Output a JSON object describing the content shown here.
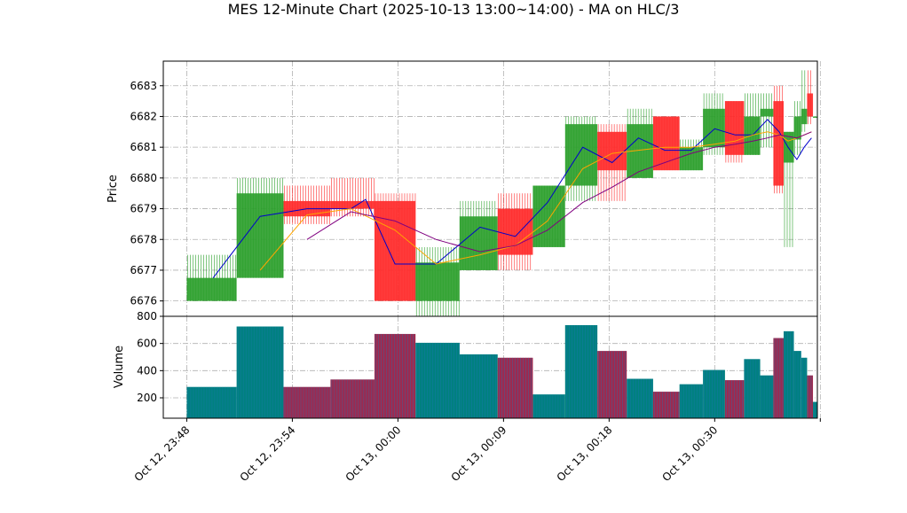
{
  "chart_data": {
    "type": "candlestick",
    "title": "MES 12-Minute Chart (2025-10-13 13:00~14:00) - MA on HLC/3",
    "price_panel": {
      "ylabel": "Price",
      "ylim": [
        6675.5,
        6683.8
      ],
      "yticks": [
        6676,
        6677,
        6678,
        6679,
        6680,
        6681,
        6682,
        6683
      ],
      "grid": true
    },
    "volume_panel": {
      "ylabel": "Volume",
      "ylim": [
        50,
        800
      ],
      "yticks": [
        200,
        400,
        600,
        800
      ],
      "grid": true
    },
    "xlim": [
      -0.8,
      21.5
    ],
    "x_ticks": [
      {
        "pos": 0,
        "label": "Oct 12, 23:48"
      },
      {
        "pos": 3.6,
        "label": "Oct 12, 23:54"
      },
      {
        "pos": 7.2,
        "label": "Oct 13, 00:00"
      },
      {
        "pos": 10.8,
        "label": "Oct 13, 00:09"
      },
      {
        "pos": 14.4,
        "label": "Oct 13, 00:18"
      },
      {
        "pos": 18.0,
        "label": "Oct 13, 00:30"
      },
      {
        "pos": 21.6,
        "label": ""
      }
    ],
    "candles": [
      {
        "x0": 0.0,
        "x1": 1.7,
        "open": 6676.0,
        "high": 6677.5,
        "low": 6676.0,
        "close": 6676.75,
        "volume": 280
      },
      {
        "x0": 1.7,
        "x1": 3.3,
        "open": 6676.75,
        "high": 6680.0,
        "low": 6676.75,
        "close": 6679.5,
        "volume": 725
      },
      {
        "x0": 3.3,
        "x1": 4.9,
        "open": 6679.25,
        "high": 6679.75,
        "low": 6678.5,
        "close": 6678.75,
        "volume": 280
      },
      {
        "x0": 4.9,
        "x1": 6.4,
        "open": 6679.25,
        "high": 6680.0,
        "low": 6678.75,
        "close": 6679.0,
        "volume": 335
      },
      {
        "x0": 6.4,
        "x1": 7.8,
        "open": 6679.25,
        "high": 6679.5,
        "low": 6676.0,
        "close": 6676.0,
        "volume": 670
      },
      {
        "x0": 7.8,
        "x1": 9.3,
        "open": 6676.0,
        "high": 6677.75,
        "low": 6675.5,
        "close": 6677.25,
        "volume": 605
      },
      {
        "x0": 9.3,
        "x1": 10.6,
        "open": 6677.0,
        "high": 6679.25,
        "low": 6677.0,
        "close": 6678.75,
        "volume": 520
      },
      {
        "x0": 10.6,
        "x1": 11.8,
        "open": 6679.0,
        "high": 6679.5,
        "low": 6677.0,
        "close": 6677.5,
        "volume": 495
      },
      {
        "x0": 11.8,
        "x1": 12.9,
        "open": 6677.75,
        "high": 6679.75,
        "low": 6677.75,
        "close": 6679.75,
        "volume": 225
      },
      {
        "x0": 12.9,
        "x1": 14.0,
        "open": 6679.75,
        "high": 6682.0,
        "low": 6679.25,
        "close": 6681.75,
        "volume": 735
      },
      {
        "x0": 14.0,
        "x1": 15.0,
        "open": 6681.5,
        "high": 6681.75,
        "low": 6679.25,
        "close": 6680.25,
        "volume": 545
      },
      {
        "x0": 15.0,
        "x1": 15.9,
        "open": 6680.0,
        "high": 6682.25,
        "low": 6680.0,
        "close": 6681.75,
        "volume": 340
      },
      {
        "x0": 15.9,
        "x1": 16.8,
        "open": 6682.0,
        "high": 6682.0,
        "low": 6680.25,
        "close": 6680.25,
        "volume": 245
      },
      {
        "x0": 16.8,
        "x1": 17.6,
        "open": 6680.25,
        "high": 6681.25,
        "low": 6680.25,
        "close": 6681.0,
        "volume": 300
      },
      {
        "x0": 17.6,
        "x1": 18.35,
        "open": 6681.0,
        "high": 6682.75,
        "low": 6680.75,
        "close": 6682.25,
        "volume": 405
      },
      {
        "x0": 18.35,
        "x1": 19.0,
        "open": 6682.5,
        "high": 6682.5,
        "low": 6680.5,
        "close": 6680.75,
        "volume": 330
      },
      {
        "x0": 19.0,
        "x1": 19.55,
        "open": 6680.75,
        "high": 6682.75,
        "low": 6680.75,
        "close": 6682.0,
        "volume": 485
      },
      {
        "x0": 19.55,
        "x1": 20.0,
        "open": 6682.0,
        "high": 6682.75,
        "low": 6681.0,
        "close": 6682.25,
        "volume": 365
      },
      {
        "x0": 20.0,
        "x1": 20.35,
        "open": 6682.5,
        "high": 6683.0,
        "low": 6679.5,
        "close": 6679.75,
        "volume": 640
      },
      {
        "x0": 20.35,
        "x1": 20.7,
        "open": 6680.5,
        "high": 6681.5,
        "low": 6677.75,
        "close": 6681.5,
        "volume": 690
      },
      {
        "x0": 20.7,
        "x1": 20.95,
        "open": 6681.25,
        "high": 6682.5,
        "low": 6680.75,
        "close": 6682.0,
        "volume": 545
      },
      {
        "x0": 20.95,
        "x1": 21.15,
        "open": 6681.75,
        "high": 6683.5,
        "low": 6681.5,
        "close": 6682.25,
        "volume": 495
      },
      {
        "x0": 21.15,
        "x1": 21.35,
        "open": 6682.75,
        "high": 6683.5,
        "low": 6681.75,
        "close": 6682.0,
        "volume": 365
      },
      {
        "x0": 21.35,
        "x1": 21.5,
        "open": 6682.0,
        "high": 6682.0,
        "low": 6682.0,
        "close": 6682.0,
        "volume": 170
      }
    ],
    "series": [
      {
        "color": "#0000cc",
        "points": [
          [
            0.9,
            6676.75
          ],
          [
            2.5,
            6678.75
          ],
          [
            4.1,
            6679.0
          ],
          [
            5.6,
            6679.0
          ],
          [
            6.1,
            6679.3
          ],
          [
            7.1,
            6677.2
          ],
          [
            8.5,
            6677.2
          ],
          [
            10.0,
            6678.4
          ],
          [
            11.2,
            6678.1
          ],
          [
            12.3,
            6679.2
          ],
          [
            13.5,
            6681.0
          ],
          [
            14.5,
            6680.5
          ],
          [
            15.4,
            6681.3
          ],
          [
            16.3,
            6680.9
          ],
          [
            17.2,
            6680.9
          ],
          [
            18.0,
            6681.6
          ],
          [
            18.7,
            6681.4
          ],
          [
            19.3,
            6681.4
          ],
          [
            19.8,
            6681.9
          ],
          [
            20.2,
            6681.5
          ],
          [
            20.5,
            6681.0
          ],
          [
            20.8,
            6680.6
          ],
          [
            21.05,
            6681.0
          ],
          [
            21.3,
            6681.3
          ]
        ]
      },
      {
        "color": "#ffa500",
        "points": [
          [
            2.5,
            6677.0
          ],
          [
            4.1,
            6678.8
          ],
          [
            5.6,
            6679.0
          ],
          [
            7.1,
            6678.3
          ],
          [
            8.5,
            6677.2
          ],
          [
            10.0,
            6677.5
          ],
          [
            11.2,
            6677.8
          ],
          [
            12.3,
            6678.6
          ],
          [
            13.5,
            6680.3
          ],
          [
            14.5,
            6680.8
          ],
          [
            15.4,
            6680.9
          ],
          [
            16.3,
            6681.0
          ],
          [
            17.2,
            6681.0
          ],
          [
            18.0,
            6681.1
          ],
          [
            18.7,
            6681.2
          ],
          [
            19.3,
            6681.4
          ],
          [
            19.8,
            6681.5
          ],
          [
            20.2,
            6681.4
          ],
          [
            20.5,
            6681.2
          ],
          [
            20.8,
            6681.3
          ],
          [
            21.05,
            6681.4
          ],
          [
            21.3,
            6681.5
          ]
        ]
      },
      {
        "color": "#800080",
        "points": [
          [
            4.1,
            6678.0
          ],
          [
            5.6,
            6678.9
          ],
          [
            7.1,
            6678.6
          ],
          [
            8.5,
            6678.0
          ],
          [
            10.0,
            6677.6
          ],
          [
            11.2,
            6677.8
          ],
          [
            12.3,
            6678.3
          ],
          [
            13.5,
            6679.2
          ],
          [
            14.5,
            6679.7
          ],
          [
            15.4,
            6680.2
          ],
          [
            16.3,
            6680.5
          ],
          [
            17.2,
            6680.8
          ],
          [
            18.0,
            6681.0
          ],
          [
            18.7,
            6681.1
          ],
          [
            19.3,
            6681.2
          ],
          [
            19.8,
            6681.3
          ],
          [
            20.2,
            6681.4
          ],
          [
            20.5,
            6681.35
          ],
          [
            20.8,
            6681.3
          ],
          [
            21.05,
            6681.4
          ],
          [
            21.3,
            6681.5
          ]
        ]
      }
    ],
    "colors": {
      "up": "#2ca02c",
      "down": "#ff2a2a",
      "volume_up": "#008080",
      "volume_down": "#9c2a50",
      "volume_edge": "#1f77b4"
    }
  }
}
